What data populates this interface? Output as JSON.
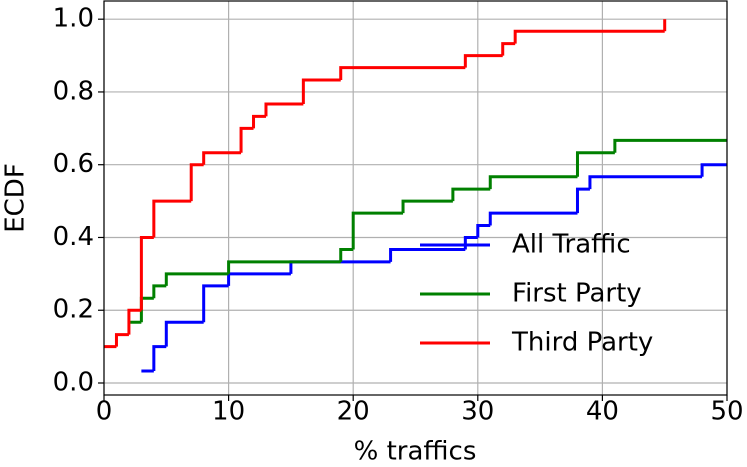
{
  "chart_data": {
    "type": "ecdf",
    "xlabel": "% traffics",
    "ylabel": "ECDF",
    "xlim": [
      0,
      50
    ],
    "ylim": [
      -0.033,
      1.05
    ],
    "xticks": [
      0,
      10,
      20,
      30,
      40,
      50
    ],
    "yticks": [
      {
        "value": 0,
        "label": "0.0"
      },
      {
        "value": 0.2,
        "label": "0.2"
      },
      {
        "value": 0.4,
        "label": "0.4"
      },
      {
        "value": 0.6,
        "label": "0.6"
      },
      {
        "value": 0.8,
        "label": "0.8"
      },
      {
        "value": 1,
        "label": "1.0"
      }
    ],
    "grid": true,
    "legend": "lower right",
    "series": [
      {
        "name": "All Traffic",
        "color": "#0000ff",
        "x": [
          3,
          4,
          5,
          8,
          10,
          15,
          23,
          29,
          30,
          31,
          38,
          39,
          48,
          50
        ],
        "values": [
          0.033,
          0.1,
          0.167,
          0.267,
          0.3,
          0.333,
          0.367,
          0.4,
          0.433,
          0.467,
          0.533,
          0.567,
          0.6,
          0.6
        ]
      },
      {
        "name": "First Party",
        "color": "#008000",
        "x": [
          2.1,
          3,
          4,
          5,
          10,
          19,
          20,
          24,
          28,
          31,
          38,
          41,
          50
        ],
        "values": [
          0.167,
          0.233,
          0.267,
          0.3,
          0.333,
          0.367,
          0.467,
          0.5,
          0.533,
          0.567,
          0.633,
          0.667,
          0.667
        ]
      },
      {
        "name": "Third Party",
        "color": "#ff0000",
        "x": [
          0,
          1,
          2,
          3,
          4,
          7,
          8,
          11,
          12,
          13,
          16,
          19,
          29,
          32,
          33,
          45
        ],
        "values": [
          0.1,
          0.133,
          0.2,
          0.4,
          0.5,
          0.6,
          0.633,
          0.7,
          0.733,
          0.767,
          0.833,
          0.867,
          0.9,
          0.933,
          0.967,
          1.0
        ]
      }
    ]
  }
}
